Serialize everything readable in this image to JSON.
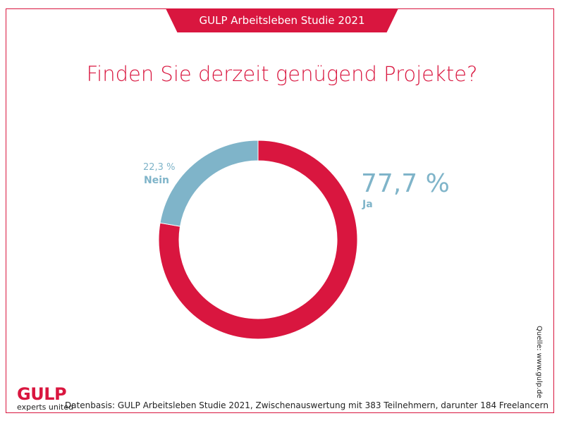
{
  "header": {
    "banner": "GULP Arbeitsleben Studie 2021"
  },
  "chart_data": {
    "type": "pie",
    "title": "Finden Sie derzeit genügend Projekte?",
    "donut": true,
    "slices": [
      {
        "label": "Ja",
        "value": 77.7,
        "value_label": "77,7 %",
        "color": "#d9163f"
      },
      {
        "label": "Nein",
        "value": 22.3,
        "value_label": "22,3 %",
        "color": "#7fb4c9"
      }
    ]
  },
  "footer": {
    "logo": "GULP",
    "tagline": "experts united",
    "source": "Quelle: www.gulp.de",
    "footnote": "Datenbasis: GULP Arbeitsleben Studie 2021, Zwischenauswertung mit 383 Teilnehmern, darunter 184 Freelancern"
  }
}
